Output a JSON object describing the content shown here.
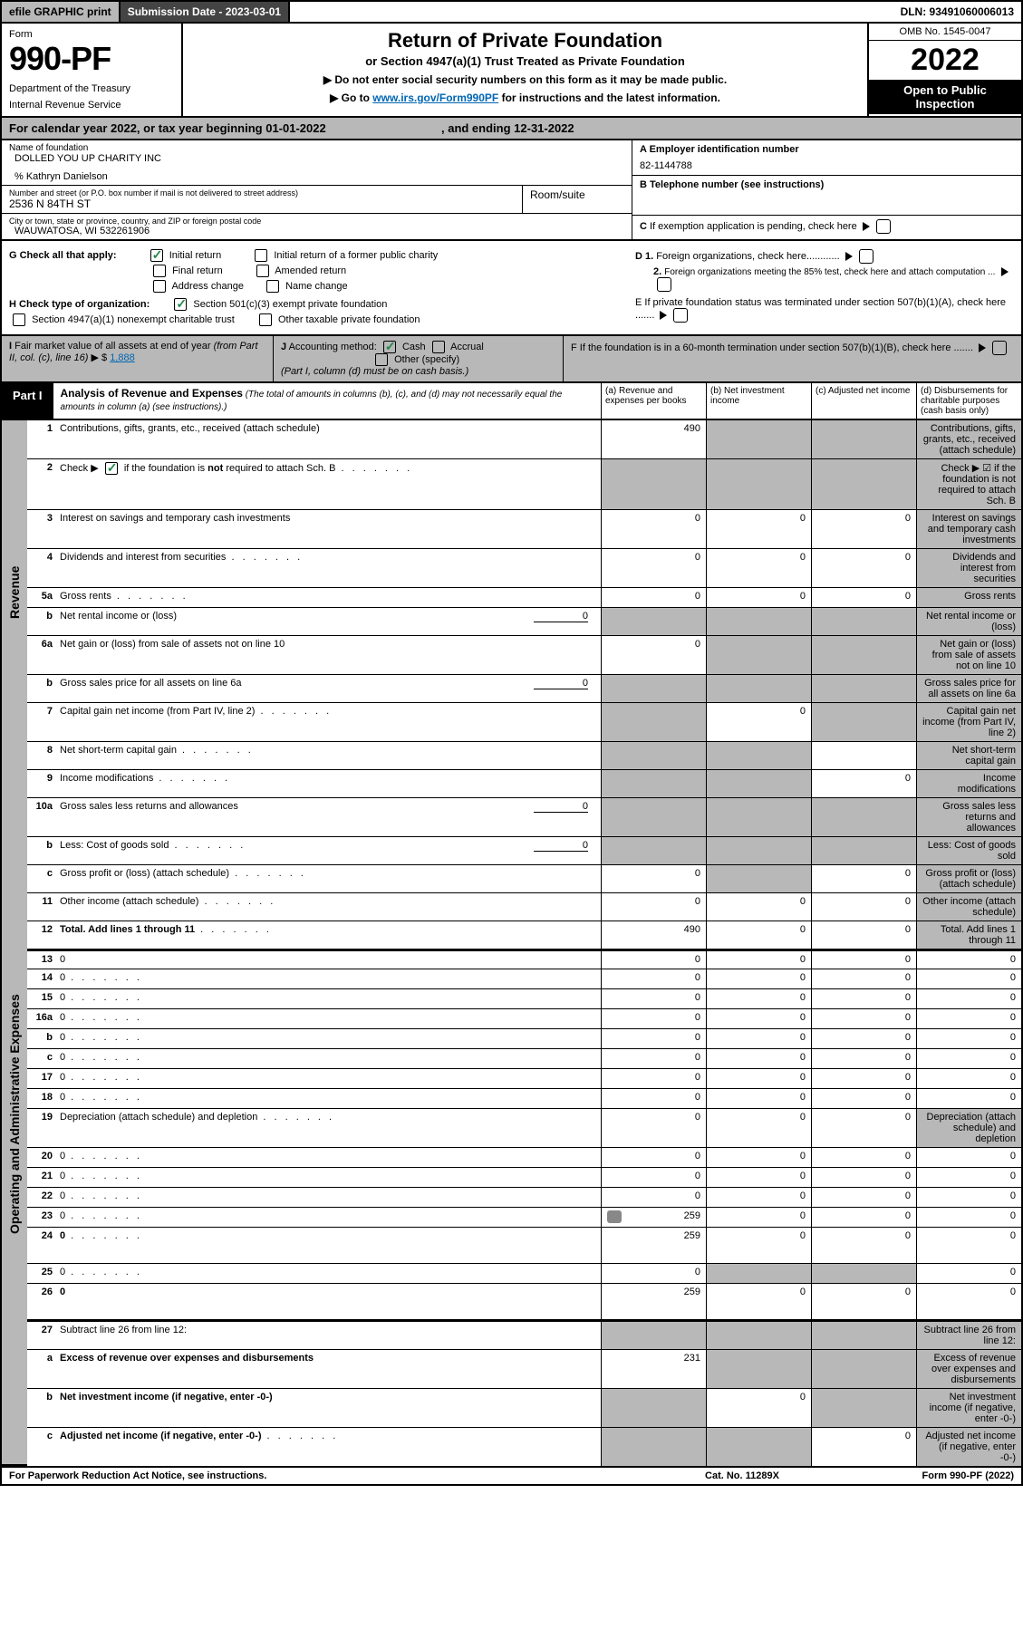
{
  "topbar": {
    "efile": "efile GRAPHIC print",
    "submission": "Submission Date - 2023-03-01",
    "dln": "DLN: 93491060006013"
  },
  "header": {
    "form_label": "Form",
    "form_number": "990-PF",
    "dept1": "Department of the Treasury",
    "dept2": "Internal Revenue Service",
    "title": "Return of Private Foundation",
    "subtitle": "or Section 4947(a)(1) Trust Treated as Private Foundation",
    "notice1": "▶ Do not enter social security numbers on this form as it may be made public.",
    "notice2_pre": "▶ Go to ",
    "notice2_link": "www.irs.gov/Form990PF",
    "notice2_post": " for instructions and the latest information.",
    "omb": "OMB No. 1545-0047",
    "year": "2022",
    "open1": "Open to Public",
    "open2": "Inspection"
  },
  "calyear": {
    "text1": "For calendar year 2022, or tax year beginning 01-01-2022",
    "text2": ", and ending 12-31-2022"
  },
  "info": {
    "name_label": "Name of foundation",
    "name": "DOLLED YOU UP CHARITY INC",
    "care_of": "% Kathryn Danielson",
    "addr_label": "Number and street (or P.O. box number if mail is not delivered to street address)",
    "addr": "2536 N 84TH ST",
    "room_label": "Room/suite",
    "city_label": "City or town, state or province, country, and ZIP or foreign postal code",
    "city": "WAUWATOSA, WI  532261906",
    "a_label": "A Employer identification number",
    "a_val": "82-1144788",
    "b_label": "B Telephone number (see instructions)",
    "c_label": "C If exemption application is pending, check here",
    "d1": "D 1. Foreign organizations, check here",
    "d2": "2. Foreign organizations meeting the 85% test, check here and attach computation ...",
    "e": "E  If private foundation status was terminated under section 507(b)(1)(A), check here .......",
    "f": "F  If the foundation is in a 60-month termination under section 507(b)(1)(B), check here .......",
    "g_label": "G Check all that apply:",
    "g_initial": "Initial return",
    "g_initial_former": "Initial return of a former public charity",
    "g_final": "Final return",
    "g_amended": "Amended return",
    "g_address": "Address change",
    "g_name": "Name change",
    "h_label": "H Check type of organization:",
    "h_501": "Section 501(c)(3) exempt private foundation",
    "h_4947": "Section 4947(a)(1) nonexempt charitable trust",
    "h_other": "Other taxable private foundation",
    "i_label": "I Fair market value of all assets at end of year (from Part II, col. (c), line 16)",
    "i_prefix": "▶ $",
    "i_val": "1,888",
    "j_label": "J Accounting method:",
    "j_cash": "Cash",
    "j_accrual": "Accrual",
    "j_other": "Other (specify)",
    "j_note": "(Part I, column (d) must be on cash basis.)"
  },
  "part1": {
    "label": "Part I",
    "title_bold": "Analysis of Revenue and Expenses",
    "title_italic": " (The total of amounts in columns (b), (c), and (d) may not necessarily equal the amounts in column (a) (see instructions).)",
    "col_a": "(a)    Revenue and expenses per books",
    "col_b": "(b)    Net investment income",
    "col_c": "(c)   Adjusted net income",
    "col_d": "(d)    Disbursements for charitable purposes (cash basis only)"
  },
  "sections": {
    "revenue": "Revenue",
    "expenses": "Operating and Administrative Expenses"
  },
  "rows": [
    {
      "n": "1",
      "d": "Contributions, gifts, grants, etc., received (attach schedule)",
      "a": "490",
      "b_grey": true,
      "c_grey": true,
      "d_grey": true
    },
    {
      "n": "2",
      "d": "Check ▶ ☑ if the foundation is not required to attach Sch. B",
      "dots": true,
      "a_grey": true,
      "b_grey": true,
      "c_grey": true,
      "d_grey": true,
      "checked": true,
      "desc_bold_word": "not"
    },
    {
      "n": "3",
      "d": "Interest on savings and temporary cash investments",
      "a": "0",
      "b": "0",
      "c": "0",
      "d_grey": true
    },
    {
      "n": "4",
      "d": "Dividends and interest from securities",
      "dots": true,
      "a": "0",
      "b": "0",
      "c": "0",
      "d_grey": true
    },
    {
      "n": "5a",
      "d": "Gross rents",
      "dots": true,
      "a": "0",
      "b": "0",
      "c": "0",
      "d_grey": true
    },
    {
      "n": "b",
      "d": "Net rental income or (loss)",
      "inline": "0",
      "a_grey": true,
      "b_grey": true,
      "c_grey": true,
      "d_grey": true
    },
    {
      "n": "6a",
      "d": "Net gain or (loss) from sale of assets not on line 10",
      "a": "0",
      "b_grey": true,
      "c_grey": true,
      "d_grey": true
    },
    {
      "n": "b",
      "d": "Gross sales price for all assets on line 6a",
      "inline": "0",
      "a_grey": true,
      "b_grey": true,
      "c_grey": true,
      "d_grey": true
    },
    {
      "n": "7",
      "d": "Capital gain net income (from Part IV, line 2)",
      "dots": true,
      "a_grey": true,
      "b": "0",
      "c_grey": true,
      "d_grey": true
    },
    {
      "n": "8",
      "d": "Net short-term capital gain",
      "dots": true,
      "a_grey": true,
      "b_grey": true,
      "c": "",
      "d_grey": true
    },
    {
      "n": "9",
      "d": "Income modifications",
      "dots": true,
      "a_grey": true,
      "b_grey": true,
      "c": "0",
      "d_grey": true
    },
    {
      "n": "10a",
      "d": "Gross sales less returns and allowances",
      "inline": "0",
      "a_grey": true,
      "b_grey": true,
      "c_grey": true,
      "d_grey": true
    },
    {
      "n": "b",
      "d": "Less: Cost of goods sold",
      "dots": true,
      "inline": "0",
      "a_grey": true,
      "b_grey": true,
      "c_grey": true,
      "d_grey": true
    },
    {
      "n": "c",
      "d": "Gross profit or (loss) (attach schedule)",
      "dots": true,
      "a": "0",
      "b_grey": true,
      "c": "0",
      "d_grey": true
    },
    {
      "n": "11",
      "d": "Other income (attach schedule)",
      "dots": true,
      "a": "0",
      "b": "0",
      "c": "0",
      "d_grey": true
    },
    {
      "n": "12",
      "d": "Total. Add lines 1 through 11",
      "dots": true,
      "bold": true,
      "a": "490",
      "b": "0",
      "c": "0",
      "d_grey": true
    },
    {
      "n": "13",
      "d": "0",
      "a": "0",
      "b": "0",
      "c": "0",
      "divider": true
    },
    {
      "n": "14",
      "d": "0",
      "dots": true,
      "a": "0",
      "b": "0",
      "c": "0"
    },
    {
      "n": "15",
      "d": "0",
      "dots": true,
      "a": "0",
      "b": "0",
      "c": "0"
    },
    {
      "n": "16a",
      "d": "0",
      "dots": true,
      "a": "0",
      "b": "0",
      "c": "0"
    },
    {
      "n": "b",
      "d": "0",
      "dots": true,
      "a": "0",
      "b": "0",
      "c": "0"
    },
    {
      "n": "c",
      "d": "0",
      "dots": true,
      "a": "0",
      "b": "0",
      "c": "0"
    },
    {
      "n": "17",
      "d": "0",
      "dots": true,
      "a": "0",
      "b": "0",
      "c": "0"
    },
    {
      "n": "18",
      "d": "0",
      "dots": true,
      "a": "0",
      "b": "0",
      "c": "0"
    },
    {
      "n": "19",
      "d": "Depreciation (attach schedule) and depletion",
      "dots": true,
      "a": "0",
      "b": "0",
      "c": "0",
      "d_grey": true
    },
    {
      "n": "20",
      "d": "0",
      "dots": true,
      "a": "0",
      "b": "0",
      "c": "0"
    },
    {
      "n": "21",
      "d": "0",
      "dots": true,
      "a": "0",
      "b": "0",
      "c": "0"
    },
    {
      "n": "22",
      "d": "0",
      "dots": true,
      "a": "0",
      "b": "0",
      "c": "0"
    },
    {
      "n": "23",
      "d": "0",
      "dots": true,
      "icon": true,
      "a": "259",
      "b": "0",
      "c": "0"
    },
    {
      "n": "24",
      "d": "0",
      "dots": true,
      "bold": true,
      "a": "259",
      "b": "0",
      "c": "0",
      "tall": true
    },
    {
      "n": "25",
      "d": "0",
      "dots": true,
      "a": "0",
      "b_grey": true,
      "c_grey": true
    },
    {
      "n": "26",
      "d": "0",
      "bold": true,
      "a": "259",
      "b": "0",
      "c": "0",
      "tall": true
    },
    {
      "n": "27",
      "d": "Subtract line 26 from line 12:",
      "a_grey": true,
      "b_grey": true,
      "c_grey": true,
      "d_grey": true,
      "divider": true,
      "noexp": true
    },
    {
      "n": "a",
      "d": "Excess of revenue over expenses and disbursements",
      "bold": true,
      "a": "231",
      "b_grey": true,
      "c_grey": true,
      "d_grey": true,
      "noexp": true
    },
    {
      "n": "b",
      "d": "Net investment income (if negative, enter -0-)",
      "bold": true,
      "a_grey": true,
      "b": "0",
      "c_grey": true,
      "d_grey": true,
      "noexp": true
    },
    {
      "n": "c",
      "d": "Adjusted net income (if negative, enter -0-)",
      "dots": true,
      "bold": true,
      "a_grey": true,
      "b_grey": true,
      "c": "0",
      "d_grey": true,
      "noexp": true
    }
  ],
  "footer": {
    "left": "For Paperwork Reduction Act Notice, see instructions.",
    "center": "Cat. No. 11289X",
    "right": "Form 990-PF (2022)"
  },
  "colors": {
    "grey": "#b8b8b8",
    "link": "#0066b3",
    "check": "#22884a"
  }
}
